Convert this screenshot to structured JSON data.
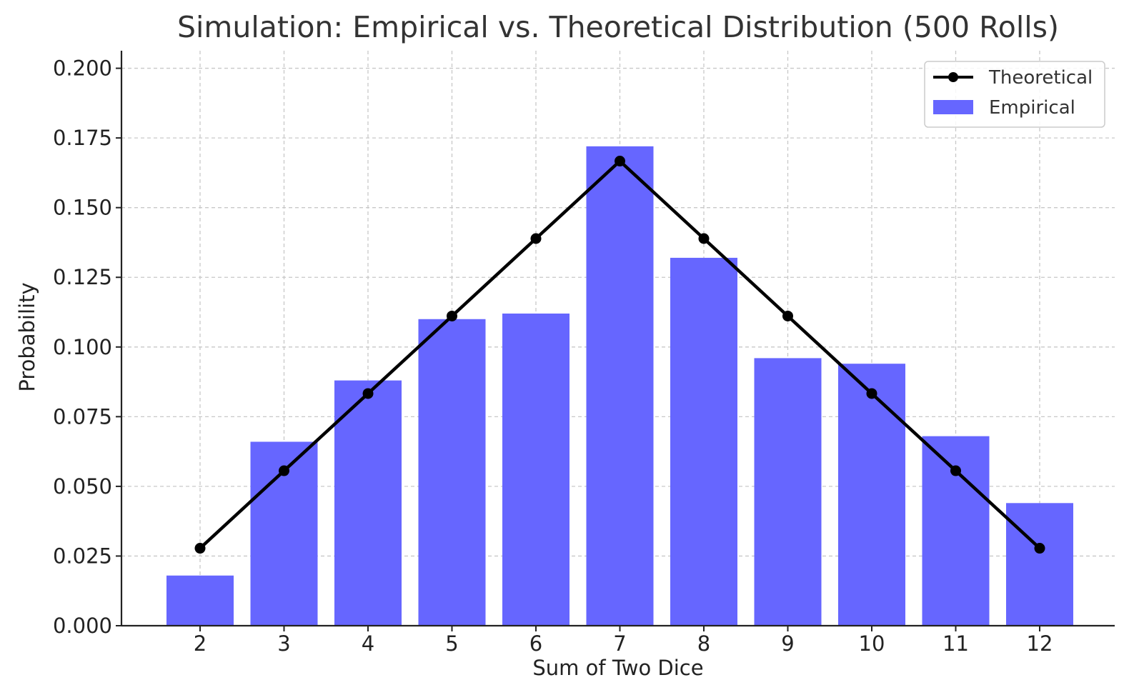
{
  "chart_data": {
    "type": "bar",
    "title": "Simulation: Empirical vs. Theoretical Distribution (500 Rolls)",
    "xlabel": "Sum of Two Dice",
    "ylabel": "Probability",
    "categories": [
      "2",
      "3",
      "4",
      "5",
      "6",
      "7",
      "8",
      "9",
      "10",
      "11",
      "12"
    ],
    "ylim": [
      0,
      0.2063
    ],
    "yticks": [
      "0.000",
      "0.025",
      "0.050",
      "0.075",
      "0.100",
      "0.125",
      "0.150",
      "0.175",
      "0.200"
    ],
    "grid": true,
    "legend_position": "top-right",
    "series": [
      {
        "name": "Theoretical",
        "type": "line",
        "color": "#000000",
        "marker": "circle",
        "values": [
          0.0278,
          0.0556,
          0.0833,
          0.1111,
          0.1389,
          0.1667,
          0.1389,
          0.1111,
          0.0833,
          0.0556,
          0.0278
        ]
      },
      {
        "name": "Empirical",
        "type": "bar",
        "color": "#6666ff",
        "values": [
          0.018,
          0.066,
          0.088,
          0.11,
          0.112,
          0.172,
          0.132,
          0.096,
          0.094,
          0.068,
          0.044
        ]
      }
    ]
  }
}
